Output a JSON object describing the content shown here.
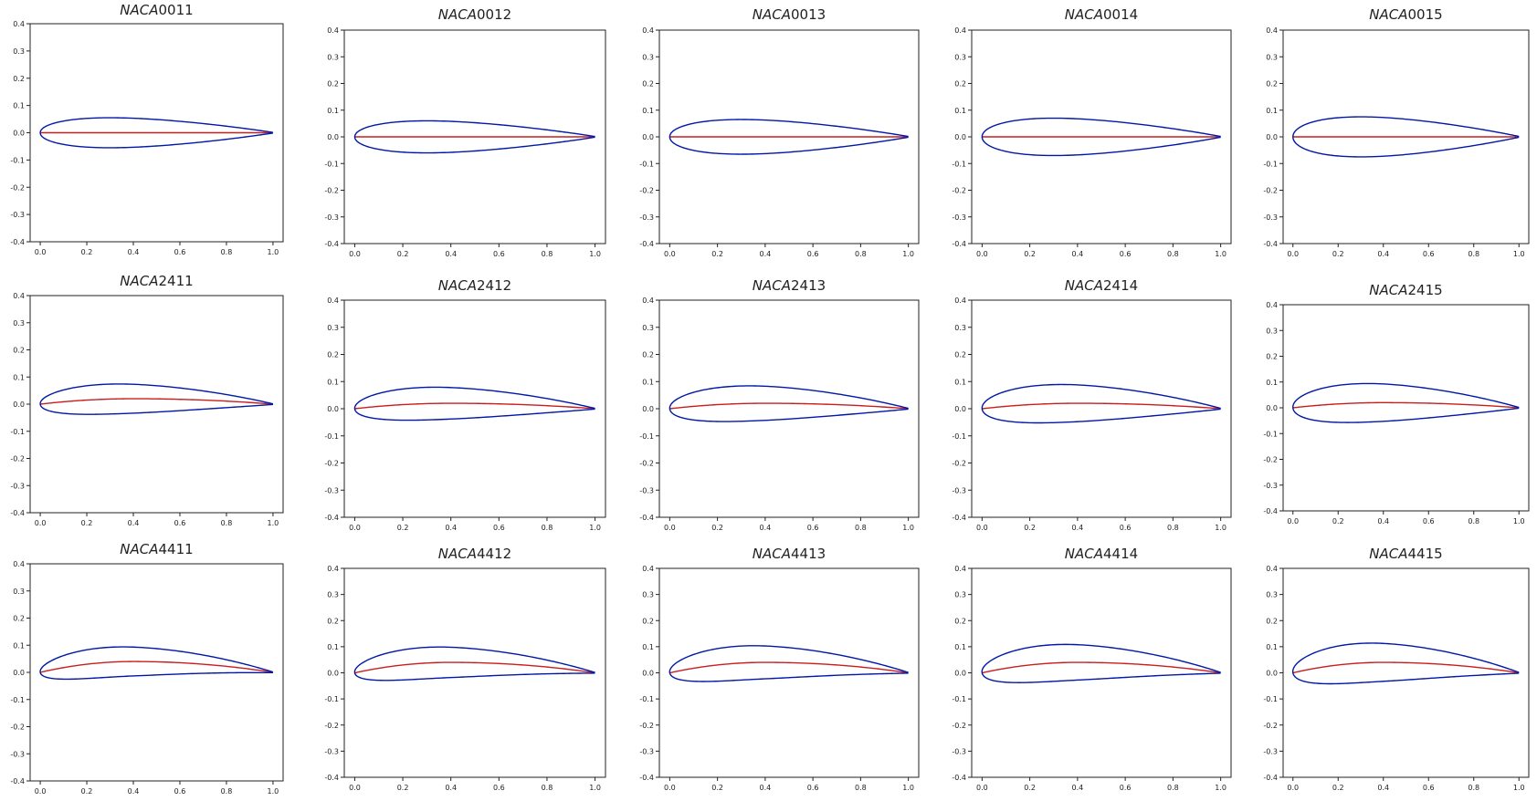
{
  "colors": {
    "surface": "#0018a8",
    "camber": "#c81e1e",
    "frame": "#222222",
    "text": "#222222"
  },
  "x_ticks": [
    "0.0",
    "0.2",
    "0.4",
    "0.6",
    "0.8",
    "1.0"
  ],
  "y_ticks": [
    "0.4",
    "0.3",
    "0.2",
    "0.1",
    "0.0",
    "-0.1",
    "-0.2",
    "-0.3",
    "-0.4"
  ],
  "chart_data": [
    {
      "type": "line",
      "title_prefix": "NACA",
      "title_suffix": "0011",
      "m": 0.0,
      "p": 0.4,
      "t": 0.11,
      "xlim": [
        0,
        1
      ],
      "ylim": [
        -0.4,
        0.4
      ],
      "grid": false
    },
    {
      "type": "line",
      "title_prefix": "NACA",
      "title_suffix": "0012",
      "m": 0.0,
      "p": 0.4,
      "t": 0.12,
      "xlim": [
        0,
        1
      ],
      "ylim": [
        -0.4,
        0.4
      ],
      "grid": false
    },
    {
      "type": "line",
      "title_prefix": "NACA",
      "title_suffix": "0013",
      "m": 0.0,
      "p": 0.4,
      "t": 0.13,
      "xlim": [
        0,
        1
      ],
      "ylim": [
        -0.4,
        0.4
      ],
      "grid": false
    },
    {
      "type": "line",
      "title_prefix": "NACA",
      "title_suffix": "0014",
      "m": 0.0,
      "p": 0.4,
      "t": 0.14,
      "xlim": [
        0,
        1
      ],
      "ylim": [
        -0.4,
        0.4
      ],
      "grid": false
    },
    {
      "type": "line",
      "title_prefix": "NACA",
      "title_suffix": "0015",
      "m": 0.0,
      "p": 0.4,
      "t": 0.15,
      "xlim": [
        0,
        1
      ],
      "ylim": [
        -0.4,
        0.4
      ],
      "grid": false
    },
    {
      "type": "line",
      "title_prefix": "NACA",
      "title_suffix": "2411",
      "m": 0.02,
      "p": 0.4,
      "t": 0.11,
      "xlim": [
        0,
        1
      ],
      "ylim": [
        -0.4,
        0.4
      ],
      "grid": false
    },
    {
      "type": "line",
      "title_prefix": "NACA",
      "title_suffix": "2412",
      "m": 0.02,
      "p": 0.4,
      "t": 0.12,
      "xlim": [
        0,
        1
      ],
      "ylim": [
        -0.4,
        0.4
      ],
      "grid": false
    },
    {
      "type": "line",
      "title_prefix": "NACA",
      "title_suffix": "2413",
      "m": 0.02,
      "p": 0.4,
      "t": 0.13,
      "xlim": [
        0,
        1
      ],
      "ylim": [
        -0.4,
        0.4
      ],
      "grid": false
    },
    {
      "type": "line",
      "title_prefix": "NACA",
      "title_suffix": "2414",
      "m": 0.02,
      "p": 0.4,
      "t": 0.14,
      "xlim": [
        0,
        1
      ],
      "ylim": [
        -0.4,
        0.4
      ],
      "grid": false
    },
    {
      "type": "line",
      "title_prefix": "NACA",
      "title_suffix": "2415",
      "m": 0.02,
      "p": 0.4,
      "t": 0.15,
      "xlim": [
        0,
        1
      ],
      "ylim": [
        -0.4,
        0.4
      ],
      "grid": false
    },
    {
      "type": "line",
      "title_prefix": "NACA",
      "title_suffix": "4411",
      "m": 0.04,
      "p": 0.4,
      "t": 0.11,
      "xlim": [
        0,
        1
      ],
      "ylim": [
        -0.4,
        0.4
      ],
      "grid": false
    },
    {
      "type": "line",
      "title_prefix": "NACA",
      "title_suffix": "4412",
      "m": 0.04,
      "p": 0.4,
      "t": 0.12,
      "xlim": [
        0,
        1
      ],
      "ylim": [
        -0.4,
        0.4
      ],
      "grid": false
    },
    {
      "type": "line",
      "title_prefix": "NACA",
      "title_suffix": "4413",
      "m": 0.04,
      "p": 0.4,
      "t": 0.13,
      "xlim": [
        0,
        1
      ],
      "ylim": [
        -0.4,
        0.4
      ],
      "grid": false
    },
    {
      "type": "line",
      "title_prefix": "NACA",
      "title_suffix": "4414",
      "m": 0.04,
      "p": 0.4,
      "t": 0.14,
      "xlim": [
        0,
        1
      ],
      "ylim": [
        -0.4,
        0.4
      ],
      "grid": false
    },
    {
      "type": "line",
      "title_prefix": "NACA",
      "title_suffix": "4415",
      "m": 0.04,
      "p": 0.4,
      "t": 0.15,
      "xlim": [
        0,
        1
      ],
      "ylim": [
        -0.4,
        0.4
      ],
      "grid": false
    }
  ]
}
